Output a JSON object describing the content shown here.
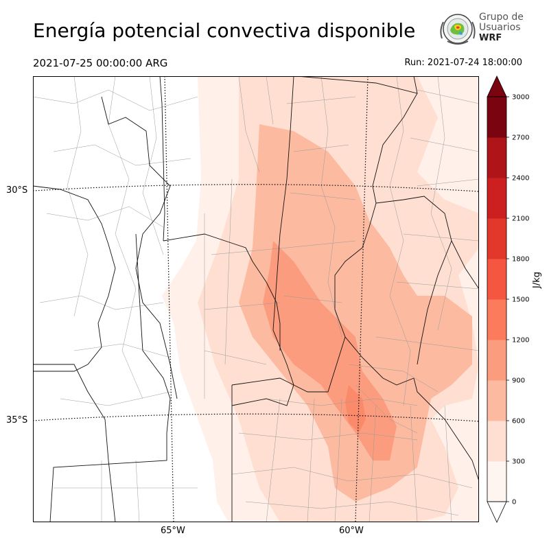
{
  "header": {
    "title": "Energía potencial convectiva disponible",
    "valid_time": "2021-07-25 00:00:00 ARG",
    "run_time": "Run: 2021-07-24 18:00:00"
  },
  "logo": {
    "line1": "Grupo de",
    "line2": "Usuarios",
    "line3": "WRF"
  },
  "map": {
    "lat_labels": [
      "30°S",
      "35°S"
    ],
    "lon_labels": [
      "65°W",
      "60°W"
    ]
  },
  "colorbar": {
    "unit": "J/kg",
    "ticks": [
      "0",
      "300",
      "600",
      "900",
      "1200",
      "1500",
      "1800",
      "2100",
      "2400",
      "2700",
      "3000"
    ],
    "colors": [
      "#fff5f0",
      "#fee0d2",
      "#fcbba1",
      "#fc9272",
      "#fb6a4a",
      "#ef3b2c",
      "#cb181d",
      "#a50f15",
      "#67000d",
      "#fee5d9"
    ],
    "fill_colors": [
      "#fff5f0",
      "#fedfd1",
      "#fcbba1",
      "#fc9c7e",
      "#fb7b5c",
      "#f4563f",
      "#e2382c",
      "#cc1f1f",
      "#ae1418",
      "#7a0510"
    ]
  }
}
